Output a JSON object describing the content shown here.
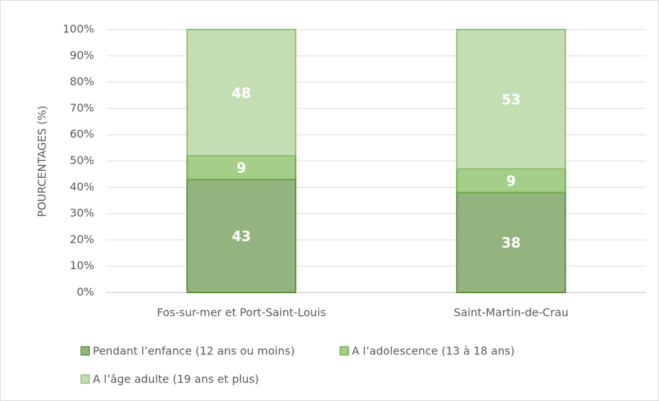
{
  "chart_data": {
    "type": "stacked_bar",
    "y_label": "POURCENTAGES (%)",
    "categories": [
      "Fos-sur-mer et Port-Saint-Louis",
      "Saint-Martin-de-Crau"
    ],
    "series": [
      {
        "name": "Pendant l’enfance (12 ans ou moins)",
        "color": "#93b47f",
        "values": [
          43,
          38
        ]
      },
      {
        "name": "A l’adolescence (13 à 18 ans)",
        "color": "#a5cf88",
        "values": [
          9,
          9
        ]
      },
      {
        "name": "A l’âge adulte (19 ans et plus)",
        "color": "#c4ddb3",
        "values": [
          48,
          53
        ]
      }
    ],
    "ylim": [
      0,
      100
    ],
    "yticks": [
      {
        "value": 0,
        "label": "0%"
      },
      {
        "value": 10,
        "label": "10%"
      },
      {
        "value": 20,
        "label": "20%"
      },
      {
        "value": 30,
        "label": "30%"
      },
      {
        "value": 40,
        "label": "40%"
      },
      {
        "value": 50,
        "label": "50%"
      },
      {
        "value": 60,
        "label": "60%"
      },
      {
        "value": 70,
        "label": "70%"
      },
      {
        "value": 80,
        "label": "80%"
      },
      {
        "value": 90,
        "label": "90%"
      },
      {
        "value": 100,
        "label": "100%"
      }
    ],
    "grid": true
  }
}
